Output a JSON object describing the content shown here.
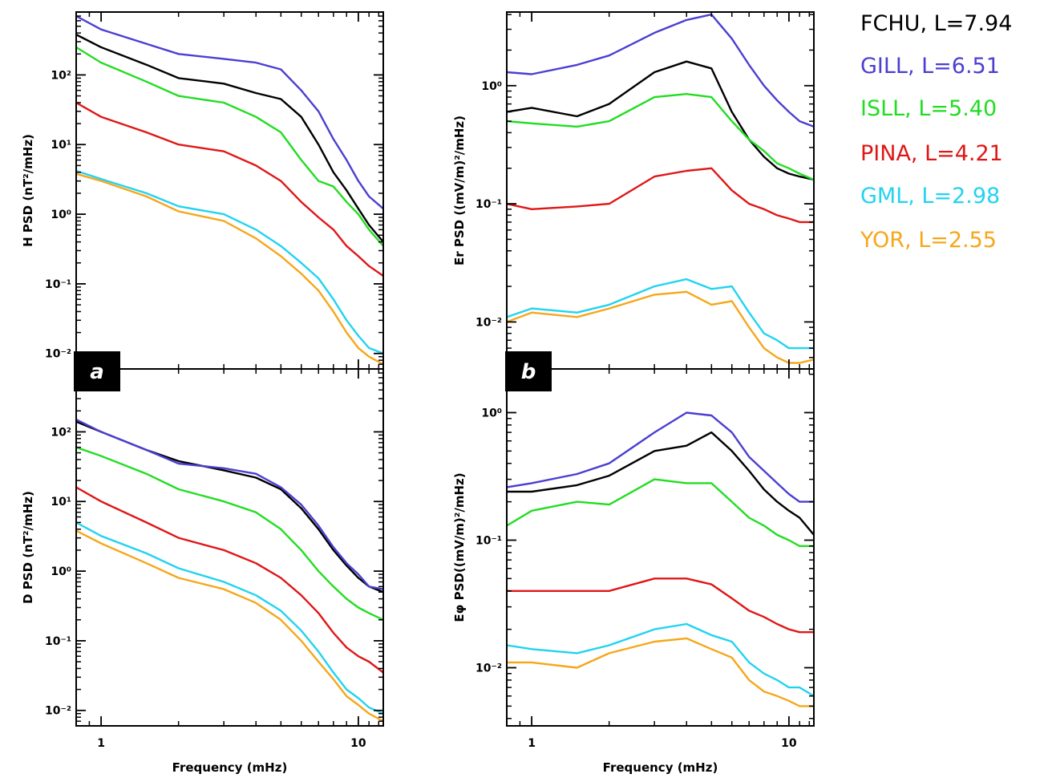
{
  "legend": [
    {
      "label": "FCHU, L=7.94",
      "color": "#000000"
    },
    {
      "label": "GILL, L=6.51",
      "color": "#4b3fd1"
    },
    {
      "label": "ISLL, L=5.40",
      "color": "#22dd22"
    },
    {
      "label": "PINA, L=4.21",
      "color": "#e01616"
    },
    {
      "label": "GML, L=2.98",
      "color": "#22d3f0"
    },
    {
      "label": "YOR, L=2.55",
      "color": "#f5a71a"
    }
  ],
  "panel_labels": [
    "a",
    "b"
  ],
  "chart_data": [
    {
      "type": "line",
      "ylabel": "H PSD (nT²/mHz)",
      "xlabel": "",
      "xscale": "log",
      "yscale": "log",
      "xlim": [
        0.8,
        12.5
      ],
      "ylim": [
        0.006,
        800
      ],
      "x_ticks": [
        1,
        10
      ],
      "x_tick_labels": [
        "1",
        "10"
      ],
      "y_ticks": [
        0.01,
        0.1,
        1,
        10,
        100
      ],
      "y_tick_labels": [
        "10⁻²",
        "10⁻¹",
        "10⁰",
        "10¹",
        "10²"
      ],
      "x": [
        0.8,
        1,
        1.5,
        2,
        3,
        4,
        5,
        6,
        7,
        8,
        9,
        10,
        11,
        12.5
      ],
      "series": [
        {
          "color": "#000000",
          "values": [
            380,
            250,
            140,
            90,
            75,
            55,
            45,
            25,
            10,
            4,
            2.2,
            1.2,
            0.7,
            0.4
          ]
        },
        {
          "color": "#4b3fd1",
          "values": [
            700,
            450,
            280,
            200,
            170,
            150,
            120,
            60,
            30,
            12,
            6,
            3,
            1.8,
            1.2
          ]
        },
        {
          "color": "#22dd22",
          "values": [
            250,
            150,
            80,
            50,
            40,
            25,
            15,
            6,
            3,
            2.5,
            1.5,
            1.0,
            0.6,
            0.35
          ]
        },
        {
          "color": "#e01616",
          "values": [
            40,
            25,
            15,
            10,
            8,
            5,
            3,
            1.5,
            0.9,
            0.6,
            0.35,
            0.25,
            0.18,
            0.13
          ]
        },
        {
          "color": "#22d3f0",
          "values": [
            4.2,
            3.2,
            2,
            1.3,
            1.0,
            0.6,
            0.35,
            0.2,
            0.12,
            0.06,
            0.03,
            0.018,
            0.012,
            0.01
          ]
        },
        {
          "color": "#f5a71a",
          "values": [
            3.8,
            3.0,
            1.8,
            1.1,
            0.8,
            0.45,
            0.25,
            0.14,
            0.08,
            0.04,
            0.02,
            0.012,
            0.009,
            0.007
          ]
        }
      ]
    },
    {
      "type": "line",
      "ylabel": "Er PSD  ((mV/m)²/mHz)",
      "xlabel": "",
      "xscale": "log",
      "yscale": "log",
      "xlim": [
        0.8,
        12.5
      ],
      "ylim": [
        0.004,
        4.2
      ],
      "x_ticks": [
        1,
        10
      ],
      "x_tick_labels": [
        "1",
        "10"
      ],
      "y_ticks": [
        0.01,
        0.1,
        1
      ],
      "y_tick_labels": [
        "10⁻²",
        "10⁻¹",
        "10⁰"
      ],
      "x": [
        0.8,
        1,
        1.5,
        2,
        3,
        4,
        5,
        6,
        7,
        8,
        9,
        10,
        11,
        12.5
      ],
      "series": [
        {
          "color": "#000000",
          "values": [
            0.6,
            0.65,
            0.55,
            0.7,
            1.3,
            1.6,
            1.4,
            0.6,
            0.35,
            0.25,
            0.2,
            0.18,
            0.17,
            0.16
          ]
        },
        {
          "color": "#4b3fd1",
          "values": [
            1.3,
            1.25,
            1.5,
            1.8,
            2.8,
            3.6,
            4.0,
            2.5,
            1.5,
            1.0,
            0.75,
            0.6,
            0.5,
            0.45
          ]
        },
        {
          "color": "#22dd22",
          "values": [
            0.5,
            0.48,
            0.45,
            0.5,
            0.8,
            0.85,
            0.8,
            0.5,
            0.35,
            0.28,
            0.22,
            0.2,
            0.18,
            0.16
          ]
        },
        {
          "color": "#e01616",
          "values": [
            0.1,
            0.09,
            0.095,
            0.1,
            0.17,
            0.19,
            0.2,
            0.13,
            0.1,
            0.09,
            0.08,
            0.075,
            0.07,
            0.07
          ]
        },
        {
          "color": "#22d3f0",
          "values": [
            0.011,
            0.013,
            0.012,
            0.014,
            0.02,
            0.023,
            0.019,
            0.02,
            0.012,
            0.008,
            0.007,
            0.006,
            0.006,
            0.006
          ]
        },
        {
          "color": "#f5a71a",
          "values": [
            0.01,
            0.012,
            0.011,
            0.013,
            0.017,
            0.018,
            0.014,
            0.015,
            0.009,
            0.006,
            0.005,
            0.0045,
            0.0045,
            0.0048
          ]
        }
      ]
    },
    {
      "type": "line",
      "ylabel": "D PSD (nT²/mHz)",
      "xlabel": "Frequency (mHz)",
      "xscale": "log",
      "yscale": "log",
      "xlim": [
        0.8,
        12.5
      ],
      "ylim": [
        0.006,
        800
      ],
      "x_ticks": [
        1,
        10
      ],
      "x_tick_labels": [
        "1",
        "10"
      ],
      "y_ticks": [
        0.01,
        0.1,
        1,
        10,
        100
      ],
      "y_tick_labels": [
        "10⁻²",
        "10⁻¹",
        "10⁰",
        "10¹",
        "10²"
      ],
      "x": [
        0.8,
        1,
        1.5,
        2,
        3,
        4,
        5,
        6,
        7,
        8,
        9,
        10,
        11,
        12.5
      ],
      "series": [
        {
          "color": "#000000",
          "values": [
            140,
            100,
            55,
            38,
            28,
            22,
            15,
            8,
            4,
            2,
            1.2,
            0.8,
            0.6,
            0.5
          ]
        },
        {
          "color": "#4b3fd1",
          "values": [
            150,
            100,
            55,
            35,
            30,
            25,
            16,
            9,
            4.5,
            2.2,
            1.3,
            0.9,
            0.6,
            0.55
          ]
        },
        {
          "color": "#22dd22",
          "values": [
            60,
            45,
            25,
            15,
            10,
            7,
            4,
            2,
            1.0,
            0.6,
            0.4,
            0.3,
            0.25,
            0.2
          ]
        },
        {
          "color": "#e01616",
          "values": [
            16,
            10,
            5,
            3,
            2,
            1.3,
            0.8,
            0.45,
            0.25,
            0.13,
            0.08,
            0.06,
            0.05,
            0.035
          ]
        },
        {
          "color": "#22d3f0",
          "values": [
            5.0,
            3.2,
            1.8,
            1.1,
            0.7,
            0.45,
            0.27,
            0.14,
            0.07,
            0.035,
            0.02,
            0.015,
            0.011,
            0.009
          ]
        },
        {
          "color": "#f5a71a",
          "values": [
            3.8,
            2.5,
            1.3,
            0.8,
            0.55,
            0.35,
            0.2,
            0.1,
            0.05,
            0.028,
            0.016,
            0.012,
            0.009,
            0.007
          ]
        }
      ]
    },
    {
      "type": "line",
      "ylabel": "Eφ PSD((mV/m)²/mHz)",
      "xlabel": "Frequency (mHz)",
      "xscale": "log",
      "yscale": "log",
      "xlim": [
        0.8,
        12.5
      ],
      "ylim": [
        0.0035,
        2.2
      ],
      "x_ticks": [
        1,
        10
      ],
      "x_tick_labels": [
        "1",
        "10"
      ],
      "y_ticks": [
        0.01,
        0.1,
        1
      ],
      "y_tick_labels": [
        "10⁻²",
        "10⁻¹",
        "10⁰"
      ],
      "x": [
        0.8,
        1,
        1.5,
        2,
        3,
        4,
        5,
        6,
        7,
        8,
        9,
        10,
        11,
        12.5
      ],
      "series": [
        {
          "color": "#000000",
          "values": [
            0.24,
            0.24,
            0.27,
            0.32,
            0.5,
            0.55,
            0.7,
            0.5,
            0.35,
            0.25,
            0.2,
            0.17,
            0.15,
            0.11
          ]
        },
        {
          "color": "#4b3fd1",
          "values": [
            0.26,
            0.28,
            0.33,
            0.4,
            0.7,
            1.0,
            0.95,
            0.7,
            0.45,
            0.35,
            0.28,
            0.23,
            0.2,
            0.2
          ]
        },
        {
          "color": "#22dd22",
          "values": [
            0.13,
            0.17,
            0.2,
            0.19,
            0.3,
            0.28,
            0.28,
            0.2,
            0.15,
            0.13,
            0.11,
            0.1,
            0.09,
            0.09
          ]
        },
        {
          "color": "#e01616",
          "values": [
            0.04,
            0.04,
            0.04,
            0.04,
            0.05,
            0.05,
            0.045,
            0.035,
            0.028,
            0.025,
            0.022,
            0.02,
            0.019,
            0.019
          ]
        },
        {
          "color": "#22d3f0",
          "values": [
            0.015,
            0.014,
            0.013,
            0.015,
            0.02,
            0.022,
            0.018,
            0.016,
            0.011,
            0.009,
            0.008,
            0.007,
            0.007,
            0.006
          ]
        },
        {
          "color": "#f5a71a",
          "values": [
            0.011,
            0.011,
            0.01,
            0.013,
            0.016,
            0.017,
            0.014,
            0.012,
            0.008,
            0.0065,
            0.006,
            0.0055,
            0.005,
            0.005
          ]
        }
      ]
    }
  ]
}
